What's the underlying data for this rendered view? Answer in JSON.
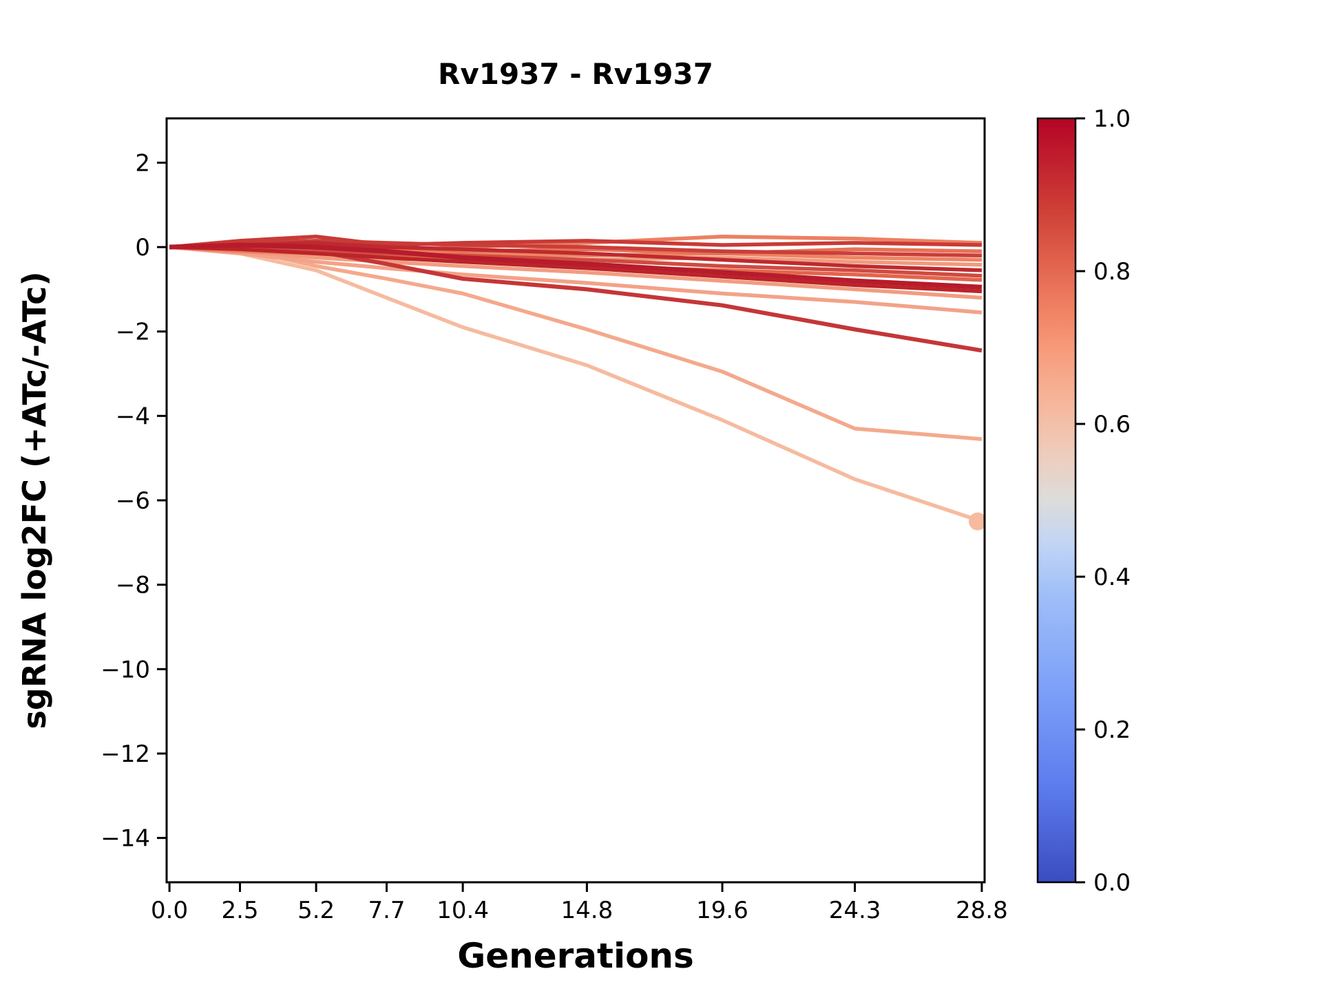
{
  "chart_data": {
    "type": "line",
    "title": "Rv1937 - Rv1937",
    "xlabel": "Generations",
    "ylabel": "sgRNA log2FC (+ATc/-ATc)",
    "x": [
      0.0,
      2.5,
      5.2,
      7.7,
      10.4,
      14.8,
      19.6,
      24.3,
      28.8
    ],
    "xtick_labels": [
      "0.0",
      "2.5",
      "5.2",
      "7.7",
      "10.4",
      "14.8",
      "19.6",
      "24.3",
      "28.8"
    ],
    "ytick_values": [
      2,
      0,
      -2,
      -4,
      -6,
      -8,
      -10,
      -12,
      -14
    ],
    "ytick_labels": [
      "2",
      "0",
      "−2",
      "−4",
      "−6",
      "−8",
      "−10",
      "−12",
      "−14"
    ],
    "xlim": [
      -0.1,
      28.9
    ],
    "ylim": [
      -15.05,
      3.05
    ],
    "grid": false,
    "legend_position": "none",
    "series": [
      {
        "color": "#f6bb9f",
        "width": 5.5,
        "marker_end": true,
        "values": [
          0,
          -0.15,
          -0.55,
          -1.2,
          -1.9,
          -2.8,
          -4.1,
          -5.5,
          -6.5
        ]
      },
      {
        "color": "#f4a98c",
        "width": 5.5,
        "marker_end": false,
        "values": [
          0,
          -0.05,
          -0.45,
          -0.75,
          -1.1,
          -1.95,
          -2.95,
          -4.3,
          -4.55
        ]
      },
      {
        "color": "#f3a288",
        "width": 5.5,
        "marker_end": false,
        "values": [
          0,
          -0.15,
          -0.35,
          -0.5,
          -0.65,
          -0.85,
          -1.1,
          -1.3,
          -1.55
        ]
      },
      {
        "color": "#f29c80",
        "width": 5.5,
        "marker_end": false,
        "values": [
          0,
          -0.1,
          -0.25,
          -0.35,
          -0.45,
          -0.6,
          -0.8,
          -1.0,
          -1.2
        ]
      },
      {
        "color": "#f09b7e",
        "width": 5.5,
        "marker_end": false,
        "values": [
          0,
          -0.1,
          -0.2,
          -0.3,
          -0.25,
          -0.3,
          -0.25,
          -0.35,
          -0.42
        ]
      },
      {
        "color": "#ee8464",
        "width": 5.5,
        "marker_end": false,
        "values": [
          0,
          -0.05,
          0.05,
          -0.05,
          -0.15,
          -0.2,
          -0.15,
          -0.25,
          -0.3
        ]
      },
      {
        "color": "#ec8063",
        "width": 5.5,
        "marker_end": false,
        "values": [
          0,
          -0.1,
          -0.15,
          -0.1,
          0.0,
          0.1,
          0.25,
          0.2,
          0.1
        ]
      },
      {
        "color": "#e77257",
        "width": 5.5,
        "marker_end": false,
        "values": [
          0,
          0.05,
          -0.05,
          0.0,
          -0.1,
          -0.05,
          -0.15,
          -0.05,
          -0.1
        ]
      },
      {
        "color": "#e2654c",
        "width": 5.5,
        "marker_end": false,
        "values": [
          0,
          -0.05,
          -0.1,
          -0.2,
          -0.3,
          -0.45,
          -0.55,
          -0.65,
          -0.78
        ]
      },
      {
        "color": "#c53637",
        "width": 6.0,
        "marker_end": false,
        "values": [
          0,
          0.05,
          -0.1,
          -0.4,
          -0.75,
          -1.0,
          -1.38,
          -1.95,
          -2.45
        ]
      },
      {
        "color": "#cf4b40",
        "width": 5.5,
        "marker_end": false,
        "values": [
          0,
          0.0,
          -0.1,
          -0.15,
          -0.2,
          -0.3,
          -0.45,
          -0.55,
          -0.68
        ]
      },
      {
        "color": "#ca3e3a",
        "width": 5.5,
        "marker_end": false,
        "values": [
          0,
          0.1,
          0.15,
          0.1,
          0.05,
          0.0,
          -0.1,
          -0.15,
          -0.2
        ]
      },
      {
        "color": "#c93a36",
        "width": 5.5,
        "marker_end": false,
        "values": [
          0,
          0.15,
          0.25,
          0.05,
          0.1,
          0.15,
          0.05,
          0.1,
          0.05
        ]
      },
      {
        "color": "#bd2a2f",
        "width": 5.5,
        "marker_end": false,
        "values": [
          0,
          0.05,
          0.1,
          0.0,
          -0.05,
          -0.15,
          -0.3,
          -0.45,
          -0.55
        ]
      },
      {
        "color": "#bb2428",
        "width": 5.5,
        "marker_end": false,
        "values": [
          0,
          -0.05,
          -0.15,
          -0.25,
          -0.35,
          -0.5,
          -0.7,
          -0.9,
          -1.05
        ]
      },
      {
        "color": "#b71b2c",
        "width": 7.0,
        "marker_end": false,
        "values": [
          0,
          0.05,
          0.0,
          -0.1,
          -0.25,
          -0.4,
          -0.6,
          -0.8,
          -0.95
        ]
      }
    ],
    "colorbar": {
      "orientation": "vertical",
      "colormap": "coolwarm",
      "tick_values": [
        1.0,
        0.8,
        0.6,
        0.4,
        0.2,
        0.0
      ],
      "tick_labels": [
        "1.0",
        "0.8",
        "0.6",
        "0.4",
        "0.2",
        "0.0"
      ],
      "stops": [
        {
          "pos": 0.0,
          "color": "#b40426"
        },
        {
          "pos": 0.125,
          "color": "#d04238"
        },
        {
          "pos": 0.25,
          "color": "#f18163"
        },
        {
          "pos": 0.31,
          "color": "#f79e7f"
        },
        {
          "pos": 0.375,
          "color": "#f6b79c"
        },
        {
          "pos": 0.44,
          "color": "#eecdbc"
        },
        {
          "pos": 0.5,
          "color": "#dddcdb"
        },
        {
          "pos": 0.56,
          "color": "#c0d4f5"
        },
        {
          "pos": 0.625,
          "color": "#9fbef8"
        },
        {
          "pos": 0.75,
          "color": "#7c9ff9"
        },
        {
          "pos": 0.875,
          "color": "#5c7ced"
        },
        {
          "pos": 1.0,
          "color": "#3b4cc0"
        }
      ]
    }
  }
}
